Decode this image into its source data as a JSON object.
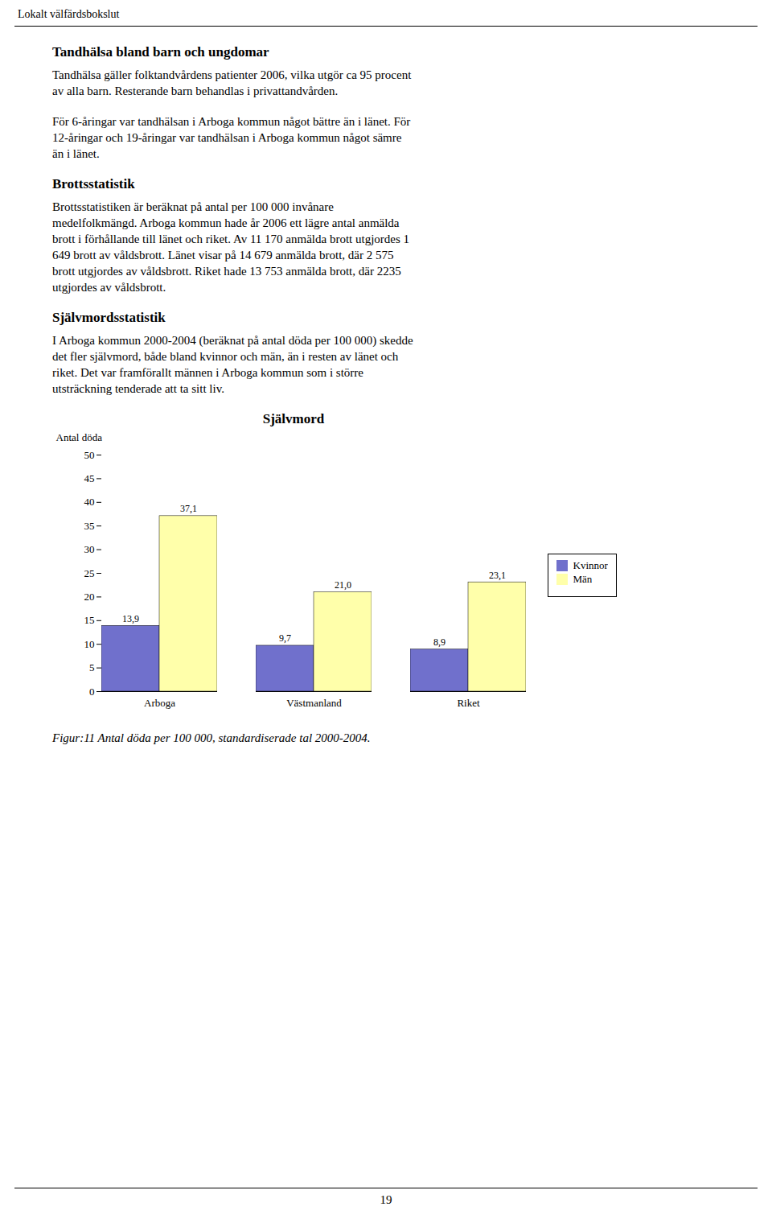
{
  "page_title": "Lokalt välfärdsbokslut",
  "page_number": "19",
  "body_text": [
    {
      "heading": "Tandhälsa bland barn och ungdomar"
    },
    {
      "paragraph": "Tandhälsa gäller folktandvårdens patienter 2006, vilka utgör ca 95 procent\nav alla barn. Resterande barn behandlas i privattandvården."
    },
    {
      "paragraph": "För 6-åringar var tandhälsan i Arboga kommun något bättre än i länet. För\n12-åringar och 19-åringar var tandhälsan i Arboga kommun något sämre\nän i länet."
    },
    {
      "heading": "Brottsstatistik"
    },
    {
      "paragraph": "Brottsstatistiken är beräknat på antal per 100 000 invånare\nmedelfolkmängd. Arboga kommun hade år 2006 ett lägre antal anmälda\nbrott i förhållande till länet och riket. Av 11 170 anmälda brott utgjordes 1\n649 brott av våldsbrott. Länet visar på 14 679 anmälda brott, där 2 575\nbrott utgjordes av våldsbrott. Riket hade 13 753 anmälda brott, där 2235\nutgjordes av våldsbrott."
    },
    {
      "heading": "Självmordsstatistik"
    },
    {
      "paragraph": "I Arboga kommun 2000-2004 (beräknat på antal döda per 100 000) skedde\ndet fler självmord, både bland kvinnor och män, än i resten av länet och\nriket. Det var framförallt männen i Arboga kommun som i större\nutsträckning tenderade att ta sitt liv."
    }
  ],
  "chart_data": {
    "type": "bar",
    "title": "Självmord",
    "ylabel": "Antal döda",
    "categories": [
      "Arboga",
      "Västmanland",
      "Riket"
    ],
    "series": [
      {
        "name": "Kvinnor",
        "color": "#7070cc",
        "values": [
          13.9,
          9.7,
          8.9
        ],
        "value_labels": [
          "13,9",
          "9,7",
          "8,9"
        ]
      },
      {
        "name": "Män",
        "color": "#ffffaa",
        "values": [
          37.1,
          21.0,
          23.1
        ],
        "value_labels": [
          "37,1",
          "21,0",
          "23,1"
        ]
      }
    ],
    "ylim": [
      0,
      50
    ],
    "yticks": [
      0,
      5,
      10,
      15,
      20,
      25,
      30,
      35,
      40,
      45,
      50
    ],
    "grid": false,
    "legend": "right",
    "data_labels": true,
    "caption": "Figur:11 Antal döda per 100 000, standardiserade tal 2000-2004."
  }
}
